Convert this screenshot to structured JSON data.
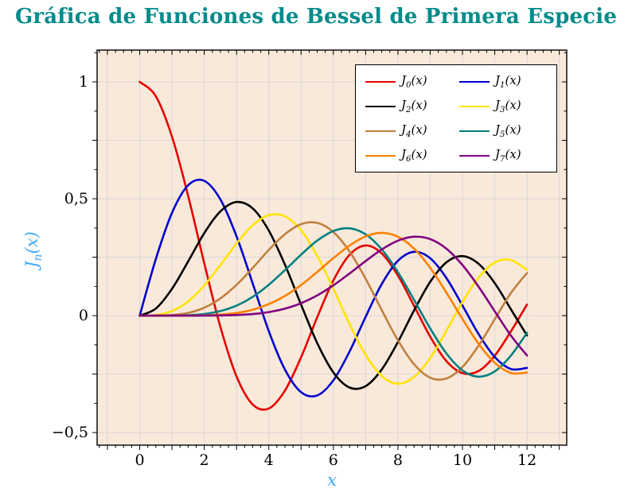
{
  "chart_data": {
    "type": "line",
    "title": "Gráfica de Funciones de Bessel de Primera Especie",
    "xlabel": "x",
    "ylabel": "J_n(x)",
    "xlim": [
      -1.32,
      13.23
    ],
    "ylim": [
      -0.554,
      1.136
    ],
    "grid": true,
    "grid_x_step": 1,
    "grid_y_step": 0.25,
    "legend_position": "top-right-inside",
    "title_color": "#008b8b",
    "axis_label_color": "#3fa9f5",
    "plot_bg": "#f9e9da",
    "grid_color": "#d8d8d8",
    "axis_color": "#000000",
    "x_tick_values": [
      0,
      2,
      4,
      6,
      8,
      10,
      12
    ],
    "x_tick_labels": [
      "0",
      "2",
      "4",
      "6",
      "8",
      "10",
      "12"
    ],
    "y_tick_values": [
      1,
      0.5,
      0,
      -0.5
    ],
    "y_tick_labels": [
      "1",
      "0,5",
      "0",
      "−0,5"
    ],
    "x": [
      0,
      0.5,
      1,
      1.5,
      2,
      2.5,
      3,
      3.5,
      4,
      4.5,
      5,
      5.5,
      6,
      6.5,
      7,
      7.5,
      8,
      8.5,
      9,
      9.5,
      10,
      10.5,
      11,
      11.5,
      12
    ],
    "series": [
      {
        "name": "J_0(x)",
        "color": "#e60000",
        "values": [
          1,
          0.9385,
          0.7652,
          0.5118,
          0.2239,
          -0.0484,
          -0.2601,
          -0.3801,
          -0.3971,
          -0.3205,
          -0.1776,
          -0.0068,
          0.1506,
          0.2601,
          0.3001,
          0.2663,
          0.1717,
          0.0419,
          -0.0903,
          -0.1939,
          -0.2459,
          -0.2366,
          -0.1712,
          -0.0677,
          0.0477
        ]
      },
      {
        "name": "J_1(x)",
        "color": "#0000cd",
        "values": [
          0,
          0.2423,
          0.4401,
          0.5579,
          0.5767,
          0.4971,
          0.3391,
          0.1374,
          -0.066,
          -0.2311,
          -0.3276,
          -0.3414,
          -0.2767,
          -0.1538,
          -0.0047,
          0.1352,
          0.2346,
          0.2731,
          0.2453,
          0.1613,
          0.0435,
          -0.0789,
          -0.1768,
          -0.2284,
          -0.2234
        ]
      },
      {
        "name": "J_2(x)",
        "color": "#000000",
        "values": [
          0,
          0.0306,
          0.1149,
          0.2321,
          0.3528,
          0.4461,
          0.4861,
          0.4586,
          0.3641,
          0.2178,
          0.0466,
          -0.1173,
          -0.2429,
          -0.3074,
          -0.3014,
          -0.2303,
          -0.113,
          0.0223,
          0.1448,
          0.2279,
          0.2546,
          0.2216,
          0.139,
          0.0279,
          -0.0849
        ]
      },
      {
        "name": "J_3(x)",
        "color": "#ffe400",
        "values": [
          0,
          0.0026,
          0.0196,
          0.061,
          0.1289,
          0.2166,
          0.3091,
          0.3868,
          0.4302,
          0.4247,
          0.3648,
          0.2561,
          0.1148,
          -0.0353,
          -0.1676,
          -0.2581,
          -0.2911,
          -0.2626,
          -0.1809,
          -0.0653,
          0.0584,
          0.1633,
          0.2273,
          0.2381,
          0.1951
        ]
      },
      {
        "name": "J_4(x)",
        "color": "#bf8040",
        "values": [
          0,
          0.0002,
          0.0025,
          0.0118,
          0.034,
          0.0738,
          0.132,
          0.2044,
          0.2811,
          0.3484,
          0.3912,
          0.3967,
          0.3576,
          0.2748,
          0.1578,
          0.0238,
          -0.1054,
          -0.2077,
          -0.2655,
          -0.2691,
          -0.2196,
          -0.1283,
          -0.015,
          0.0963,
          0.1825
        ]
      },
      {
        "name": "J_5(x)",
        "color": "#008080",
        "values": [
          0,
          0,
          0.0002,
          0.0018,
          0.007,
          0.0195,
          0.043,
          0.0804,
          0.1321,
          0.1947,
          0.2611,
          0.3209,
          0.3621,
          0.3736,
          0.3479,
          0.2835,
          0.1858,
          0.0671,
          -0.055,
          -0.1613,
          -0.2341,
          -0.2611,
          -0.2383,
          -0.1711,
          -0.0735
        ]
      },
      {
        "name": "J_6(x)",
        "color": "#ff8000",
        "values": [
          0,
          0,
          0,
          0.0002,
          0.0012,
          0.0042,
          0.0114,
          0.0254,
          0.0491,
          0.0843,
          0.131,
          0.1868,
          0.2458,
          0.2999,
          0.3392,
          0.3541,
          0.3376,
          0.2867,
          0.2043,
          0.0993,
          -0.0145,
          -0.1203,
          -0.2016,
          -0.2453,
          -0.2437
        ]
      },
      {
        "name": "J_7(x)",
        "color": "#800080",
        "values": [
          0,
          0,
          0,
          0,
          0.0002,
          0.0008,
          0.0025,
          0.0067,
          0.0152,
          0.03,
          0.0534,
          0.0866,
          0.1296,
          0.1801,
          0.2336,
          0.2832,
          0.3206,
          0.3376,
          0.3275,
          0.2868,
          0.2167,
          0.1236,
          0.0184,
          -0.0846,
          -0.1703
        ]
      }
    ]
  }
}
